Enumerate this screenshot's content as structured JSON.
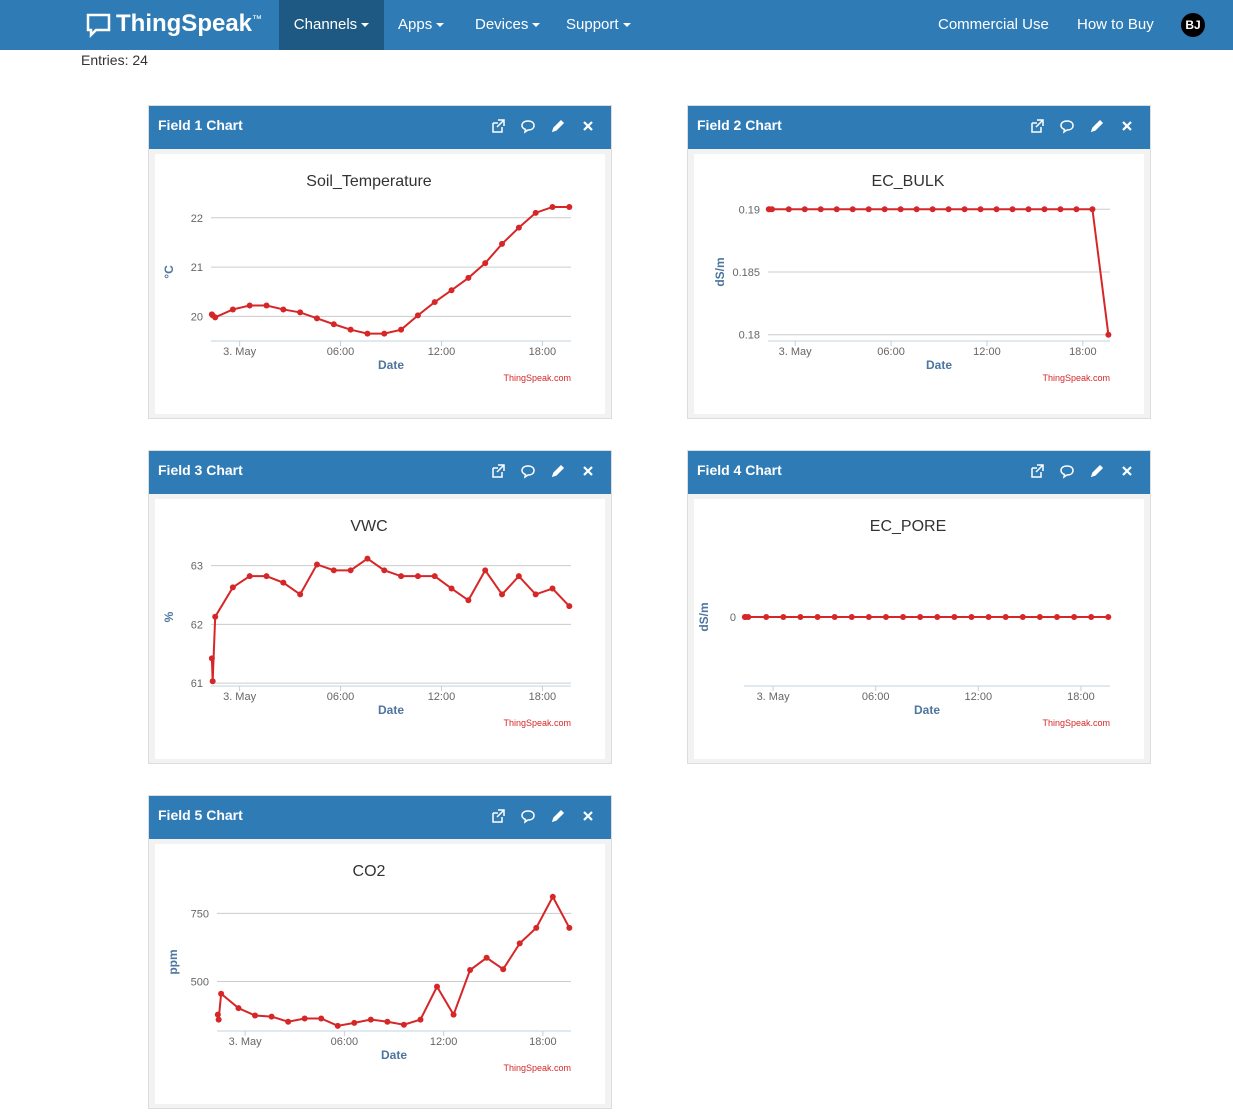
{
  "nav": {
    "brand": "ThingSpeak",
    "trademark": "™",
    "menu": [
      "Channels",
      "Apps",
      "Devices",
      "Support"
    ],
    "right": [
      "Commercial Use",
      "How to Buy"
    ],
    "avatar": "BJ"
  },
  "entries": "Entries: 24",
  "chart_data": [
    {
      "type": "line",
      "panel_title": "Field 1 Chart",
      "title": "Soil_Temperature",
      "ylabel": "°C",
      "xlabel": "Date",
      "credit": "ThingSpeak.com",
      "color": "#d62728",
      "grid": true,
      "x": [
        -1.65,
        -1.6,
        -1.45,
        -0.4,
        0.6,
        1.6,
        2.6,
        3.6,
        4.6,
        5.6,
        6.6,
        7.6,
        8.6,
        9.6,
        10.6,
        11.6,
        12.6,
        13.6,
        14.6,
        15.6,
        16.6,
        17.6,
        18.6,
        19.6
      ],
      "values": [
        20.04,
        20.02,
        19.98,
        20.14,
        20.22,
        20.22,
        20.14,
        20.08,
        19.96,
        19.84,
        19.73,
        19.65,
        19.65,
        19.73,
        20.02,
        20.29,
        20.53,
        20.78,
        21.08,
        21.47,
        21.8,
        22.1,
        22.22,
        22.22
      ],
      "xlim": [
        -1.7,
        19.7
      ],
      "xticks": [
        {
          "value": 0,
          "label": "3. May"
        },
        {
          "value": 6,
          "label": "06:00"
        },
        {
          "value": 12,
          "label": "12:00"
        },
        {
          "value": 18,
          "label": "18:00"
        }
      ],
      "ylim": [
        19.5,
        22.3
      ],
      "yticks": [
        20,
        21,
        22
      ]
    },
    {
      "type": "line",
      "panel_title": "Field 2 Chart",
      "title": "EC_BULK",
      "ylabel": "dS/m",
      "xlabel": "Date",
      "credit": "ThingSpeak.com",
      "color": "#d62728",
      "grid": true,
      "x": [
        -1.65,
        -1.6,
        -1.45,
        -0.4,
        0.6,
        1.6,
        2.6,
        3.6,
        4.6,
        5.6,
        6.6,
        7.6,
        8.6,
        9.6,
        10.6,
        11.6,
        12.6,
        13.6,
        14.6,
        15.6,
        16.6,
        17.6,
        18.6,
        19.6
      ],
      "values": [
        0.19,
        0.19,
        0.19,
        0.19,
        0.19,
        0.19,
        0.19,
        0.19,
        0.19,
        0.19,
        0.19,
        0.19,
        0.19,
        0.19,
        0.19,
        0.19,
        0.19,
        0.19,
        0.19,
        0.19,
        0.19,
        0.19,
        0.19,
        0.18
      ],
      "xlim": [
        -1.7,
        19.7
      ],
      "xticks": [
        {
          "value": 0,
          "label": "3. May"
        },
        {
          "value": 6,
          "label": "06:00"
        },
        {
          "value": 12,
          "label": "12:00"
        },
        {
          "value": 18,
          "label": "18:00"
        }
      ],
      "ylim": [
        0.1795,
        0.1905
      ],
      "yticks": [
        0.18,
        0.185,
        0.19
      ]
    },
    {
      "type": "line",
      "panel_title": "Field 3 Chart",
      "title": "VWC",
      "ylabel": "%",
      "xlabel": "Date",
      "credit": "ThingSpeak.com",
      "color": "#d62728",
      "grid": true,
      "x": [
        -1.65,
        -1.6,
        -1.45,
        -0.4,
        0.6,
        1.6,
        2.6,
        3.6,
        4.6,
        5.6,
        6.6,
        7.6,
        8.6,
        9.6,
        10.6,
        11.6,
        12.6,
        13.6,
        14.6,
        15.6,
        16.6,
        17.6,
        18.6,
        19.6
      ],
      "values": [
        61.42,
        61.03,
        62.13,
        62.63,
        62.82,
        62.82,
        62.71,
        62.51,
        63.02,
        62.92,
        62.92,
        63.12,
        62.92,
        62.82,
        62.82,
        62.82,
        62.61,
        62.41,
        62.92,
        62.51,
        62.82,
        62.51,
        62.61,
        62.31
      ],
      "xlim": [
        -1.7,
        19.7
      ],
      "xticks": [
        {
          "value": 0,
          "label": "3. May"
        },
        {
          "value": 6,
          "label": "06:00"
        },
        {
          "value": 12,
          "label": "12:00"
        },
        {
          "value": 18,
          "label": "18:00"
        }
      ],
      "ylim": [
        60.95,
        63.3
      ],
      "yticks": [
        61,
        62,
        63
      ]
    },
    {
      "type": "line",
      "panel_title": "Field 4 Chart",
      "title": "EC_PORE",
      "ylabel": "dS/m",
      "xlabel": "Date",
      "credit": "ThingSpeak.com",
      "color": "#d62728",
      "grid": true,
      "x": [
        -1.65,
        -1.6,
        -1.45,
        -0.4,
        0.6,
        1.6,
        2.6,
        3.6,
        4.6,
        5.6,
        6.6,
        7.6,
        8.6,
        9.6,
        10.6,
        11.6,
        12.6,
        13.6,
        14.6,
        15.6,
        16.6,
        17.6,
        18.6,
        19.6
      ],
      "values": [
        0,
        0,
        0,
        0,
        0,
        0,
        0,
        0,
        0,
        0,
        0,
        0,
        0,
        0,
        0,
        0,
        0,
        0,
        0,
        0,
        0,
        0,
        0,
        0
      ],
      "xlim": [
        -1.7,
        19.7
      ],
      "xticks": [
        {
          "value": 0,
          "label": "3. May"
        },
        {
          "value": 6,
          "label": "06:00"
        },
        {
          "value": 12,
          "label": "12:00"
        },
        {
          "value": 18,
          "label": "18:00"
        }
      ],
      "ylim": [
        -1,
        1
      ],
      "yticks": [
        0
      ]
    },
    {
      "type": "line",
      "panel_title": "Field 5 Chart",
      "title": "CO2",
      "ylabel": "ppm",
      "xlabel": "Date",
      "credit": "ThingSpeak.com",
      "color": "#d62728",
      "grid": true,
      "x": [
        -1.65,
        -1.6,
        -1.45,
        -0.4,
        0.6,
        1.6,
        2.6,
        3.6,
        4.6,
        5.6,
        6.6,
        7.6,
        8.6,
        9.6,
        10.6,
        11.6,
        12.6,
        13.6,
        14.6,
        15.6,
        16.6,
        17.6,
        18.6,
        19.6
      ],
      "values": [
        378,
        360,
        455,
        402,
        375,
        371,
        352,
        364,
        364,
        337,
        348,
        360,
        352,
        341,
        360,
        481,
        378,
        542,
        587,
        545,
        640,
        697,
        811,
        697
      ],
      "xlim": [
        -1.7,
        19.7
      ],
      "xticks": [
        {
          "value": 0,
          "label": "3. May"
        },
        {
          "value": 6,
          "label": "06:00"
        },
        {
          "value": 12,
          "label": "12:00"
        },
        {
          "value": 18,
          "label": "18:00"
        }
      ],
      "ylim": [
        318,
        825
      ],
      "yticks": [
        500,
        750
      ]
    }
  ]
}
